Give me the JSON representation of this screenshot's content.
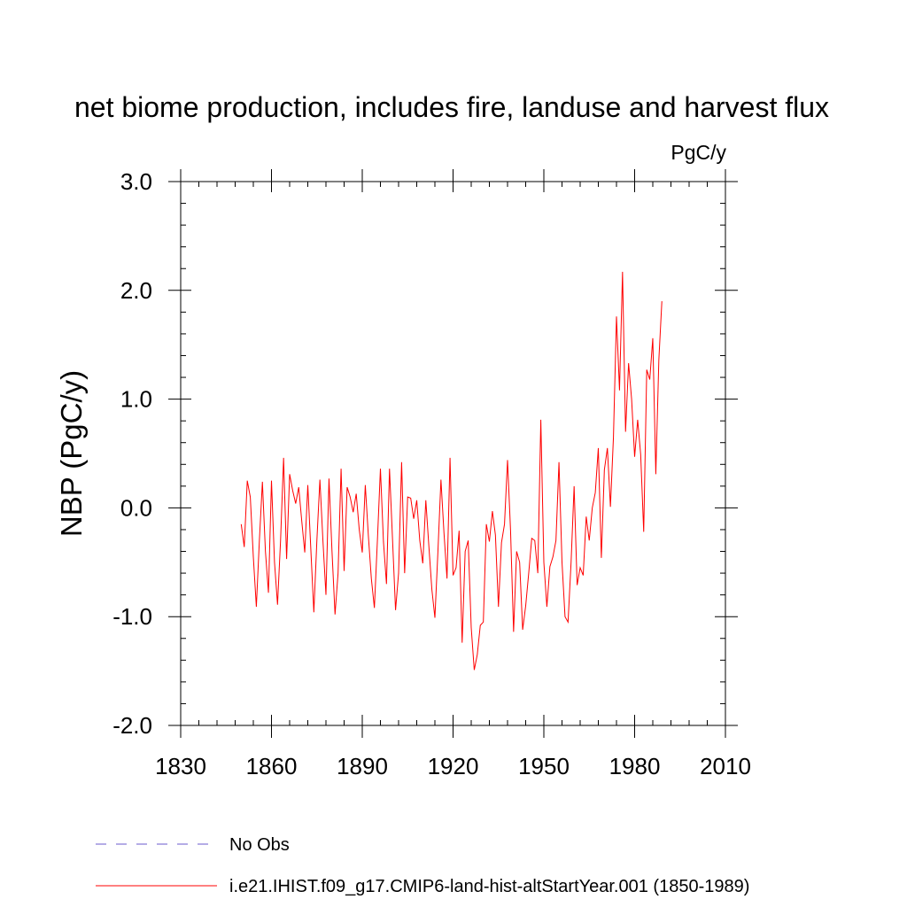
{
  "chart_data": {
    "type": "line",
    "title": "net biome production, includes fire, landuse and harvest flux",
    "units": "PgC/y",
    "ylabel": "NBP  (PgC/y)",
    "xlim": [
      1830,
      2010
    ],
    "ylim": [
      -2.0,
      3.0
    ],
    "x_ticks": [
      1830,
      1860,
      1890,
      1920,
      1950,
      1980,
      2010
    ],
    "y_ticks": [
      -2.0,
      -1.0,
      0.0,
      1.0,
      2.0,
      3.0
    ],
    "y_tick_labels": [
      "-2.0",
      "-1.0",
      "0.0",
      "1.0",
      "2.0",
      "3.0"
    ],
    "grid": false,
    "legend_position": "bottom-left",
    "series": [
      {
        "name": "No Obs",
        "color": "#6a5acd",
        "dash": true,
        "x": [],
        "y": []
      },
      {
        "name": "i.e21.IHIST.f09_g17.CMIP6-land-hist-altStartYear.001 (1850-1989)",
        "color": "#ff0000",
        "dash": false,
        "x_start": 1850,
        "x_step": 1,
        "y": [
          -0.15,
          -0.36,
          0.25,
          0.1,
          -0.45,
          -0.91,
          -0.3,
          0.24,
          -0.4,
          -0.78,
          0.25,
          -0.5,
          -0.89,
          -0.3,
          0.46,
          -0.47,
          0.31,
          0.16,
          0.04,
          0.19,
          -0.12,
          -0.41,
          0.21,
          -0.38,
          -0.96,
          -0.3,
          0.26,
          -0.3,
          -0.8,
          0.27,
          -0.4,
          -0.98,
          -0.6,
          0.36,
          -0.58,
          0.19,
          0.1,
          -0.04,
          0.13,
          -0.2,
          -0.41,
          0.21,
          -0.25,
          -0.65,
          -0.92,
          -0.3,
          0.36,
          -0.31,
          -0.7,
          0.36,
          -0.29,
          -0.94,
          -0.6,
          0.42,
          -0.6,
          0.1,
          0.09,
          -0.1,
          0.07,
          -0.3,
          -0.51,
          0.07,
          -0.35,
          -0.75,
          -1.01,
          -0.4,
          0.26,
          -0.23,
          -0.65,
          0.46,
          -0.62,
          -0.55,
          -0.21,
          -1.24,
          -0.4,
          -0.3,
          -1.1,
          -1.49,
          -1.35,
          -1.08,
          -1.05,
          -0.15,
          -0.31,
          -0.03,
          -0.25,
          -0.91,
          -0.32,
          -0.15,
          0.44,
          -0.21,
          -1.14,
          -0.4,
          -0.5,
          -1.12,
          -0.9,
          -0.6,
          -0.28,
          -0.3,
          -0.6,
          0.81,
          -0.5,
          -0.91,
          -0.54,
          -0.45,
          -0.3,
          0.42,
          -0.5,
          -1.0,
          -1.05,
          -0.5,
          0.2,
          -0.71,
          -0.55,
          -0.62,
          -0.08,
          -0.3,
          0.0,
          0.14,
          0.55,
          -0.46,
          0.35,
          0.55,
          0.01,
          0.65,
          1.76,
          1.08,
          2.17,
          0.7,
          1.33,
          1.0,
          0.47,
          0.81,
          0.49,
          -0.22,
          1.27,
          1.18,
          1.56,
          0.31,
          1.36,
          1.9
        ]
      }
    ]
  }
}
